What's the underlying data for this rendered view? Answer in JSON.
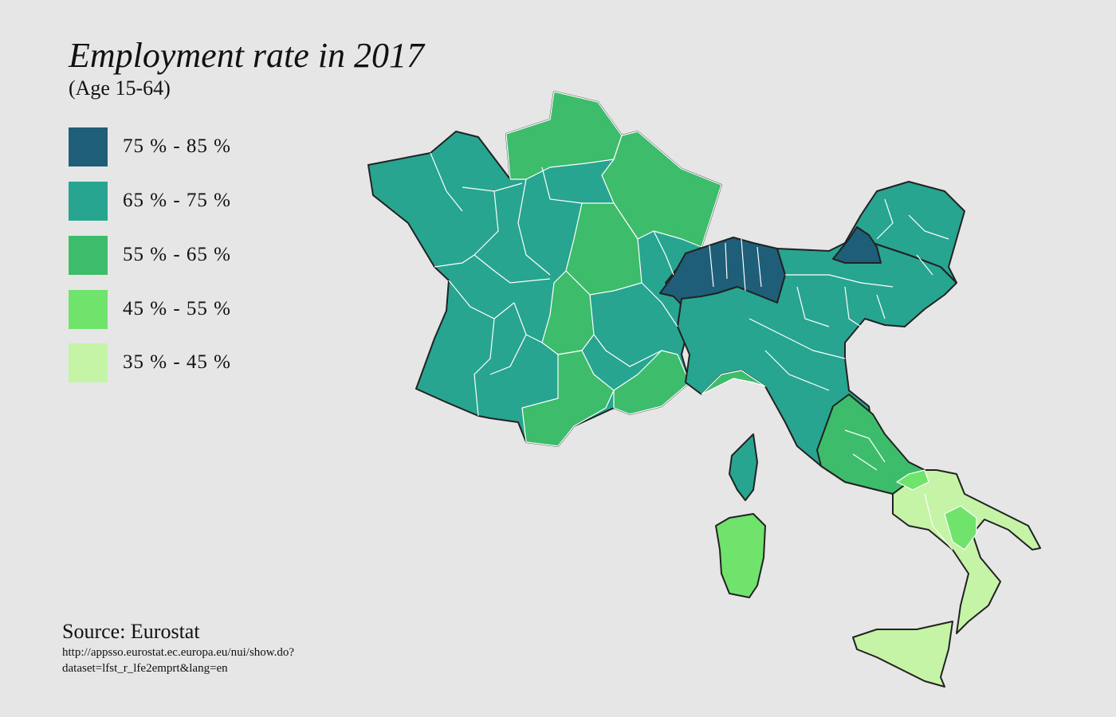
{
  "title": "Employment rate in 2017",
  "subtitle": "(Age 15-64)",
  "legend": [
    {
      "label": "75 % - 85 %",
      "color": "#1f5e78"
    },
    {
      "label": "65 % - 75 %",
      "color": "#27a591"
    },
    {
      "label": "55 % - 65 %",
      "color": "#3dbd6b"
    },
    {
      "label": "45 % - 55 %",
      "color": "#6fe36b"
    },
    {
      "label": "35 % - 45 %",
      "color": "#c6f4a6"
    }
  ],
  "source": {
    "label": "Source: Eurostat",
    "url_line1": "http://appsso.eurostat.ec.europa.eu/nui/show.do?",
    "url_line2": "dataset=lfst_r_lfe2emprt&lang=en"
  },
  "colors": {
    "background": "#e6e6e6",
    "border": "#222222",
    "region_border": "#ffffff"
  }
}
